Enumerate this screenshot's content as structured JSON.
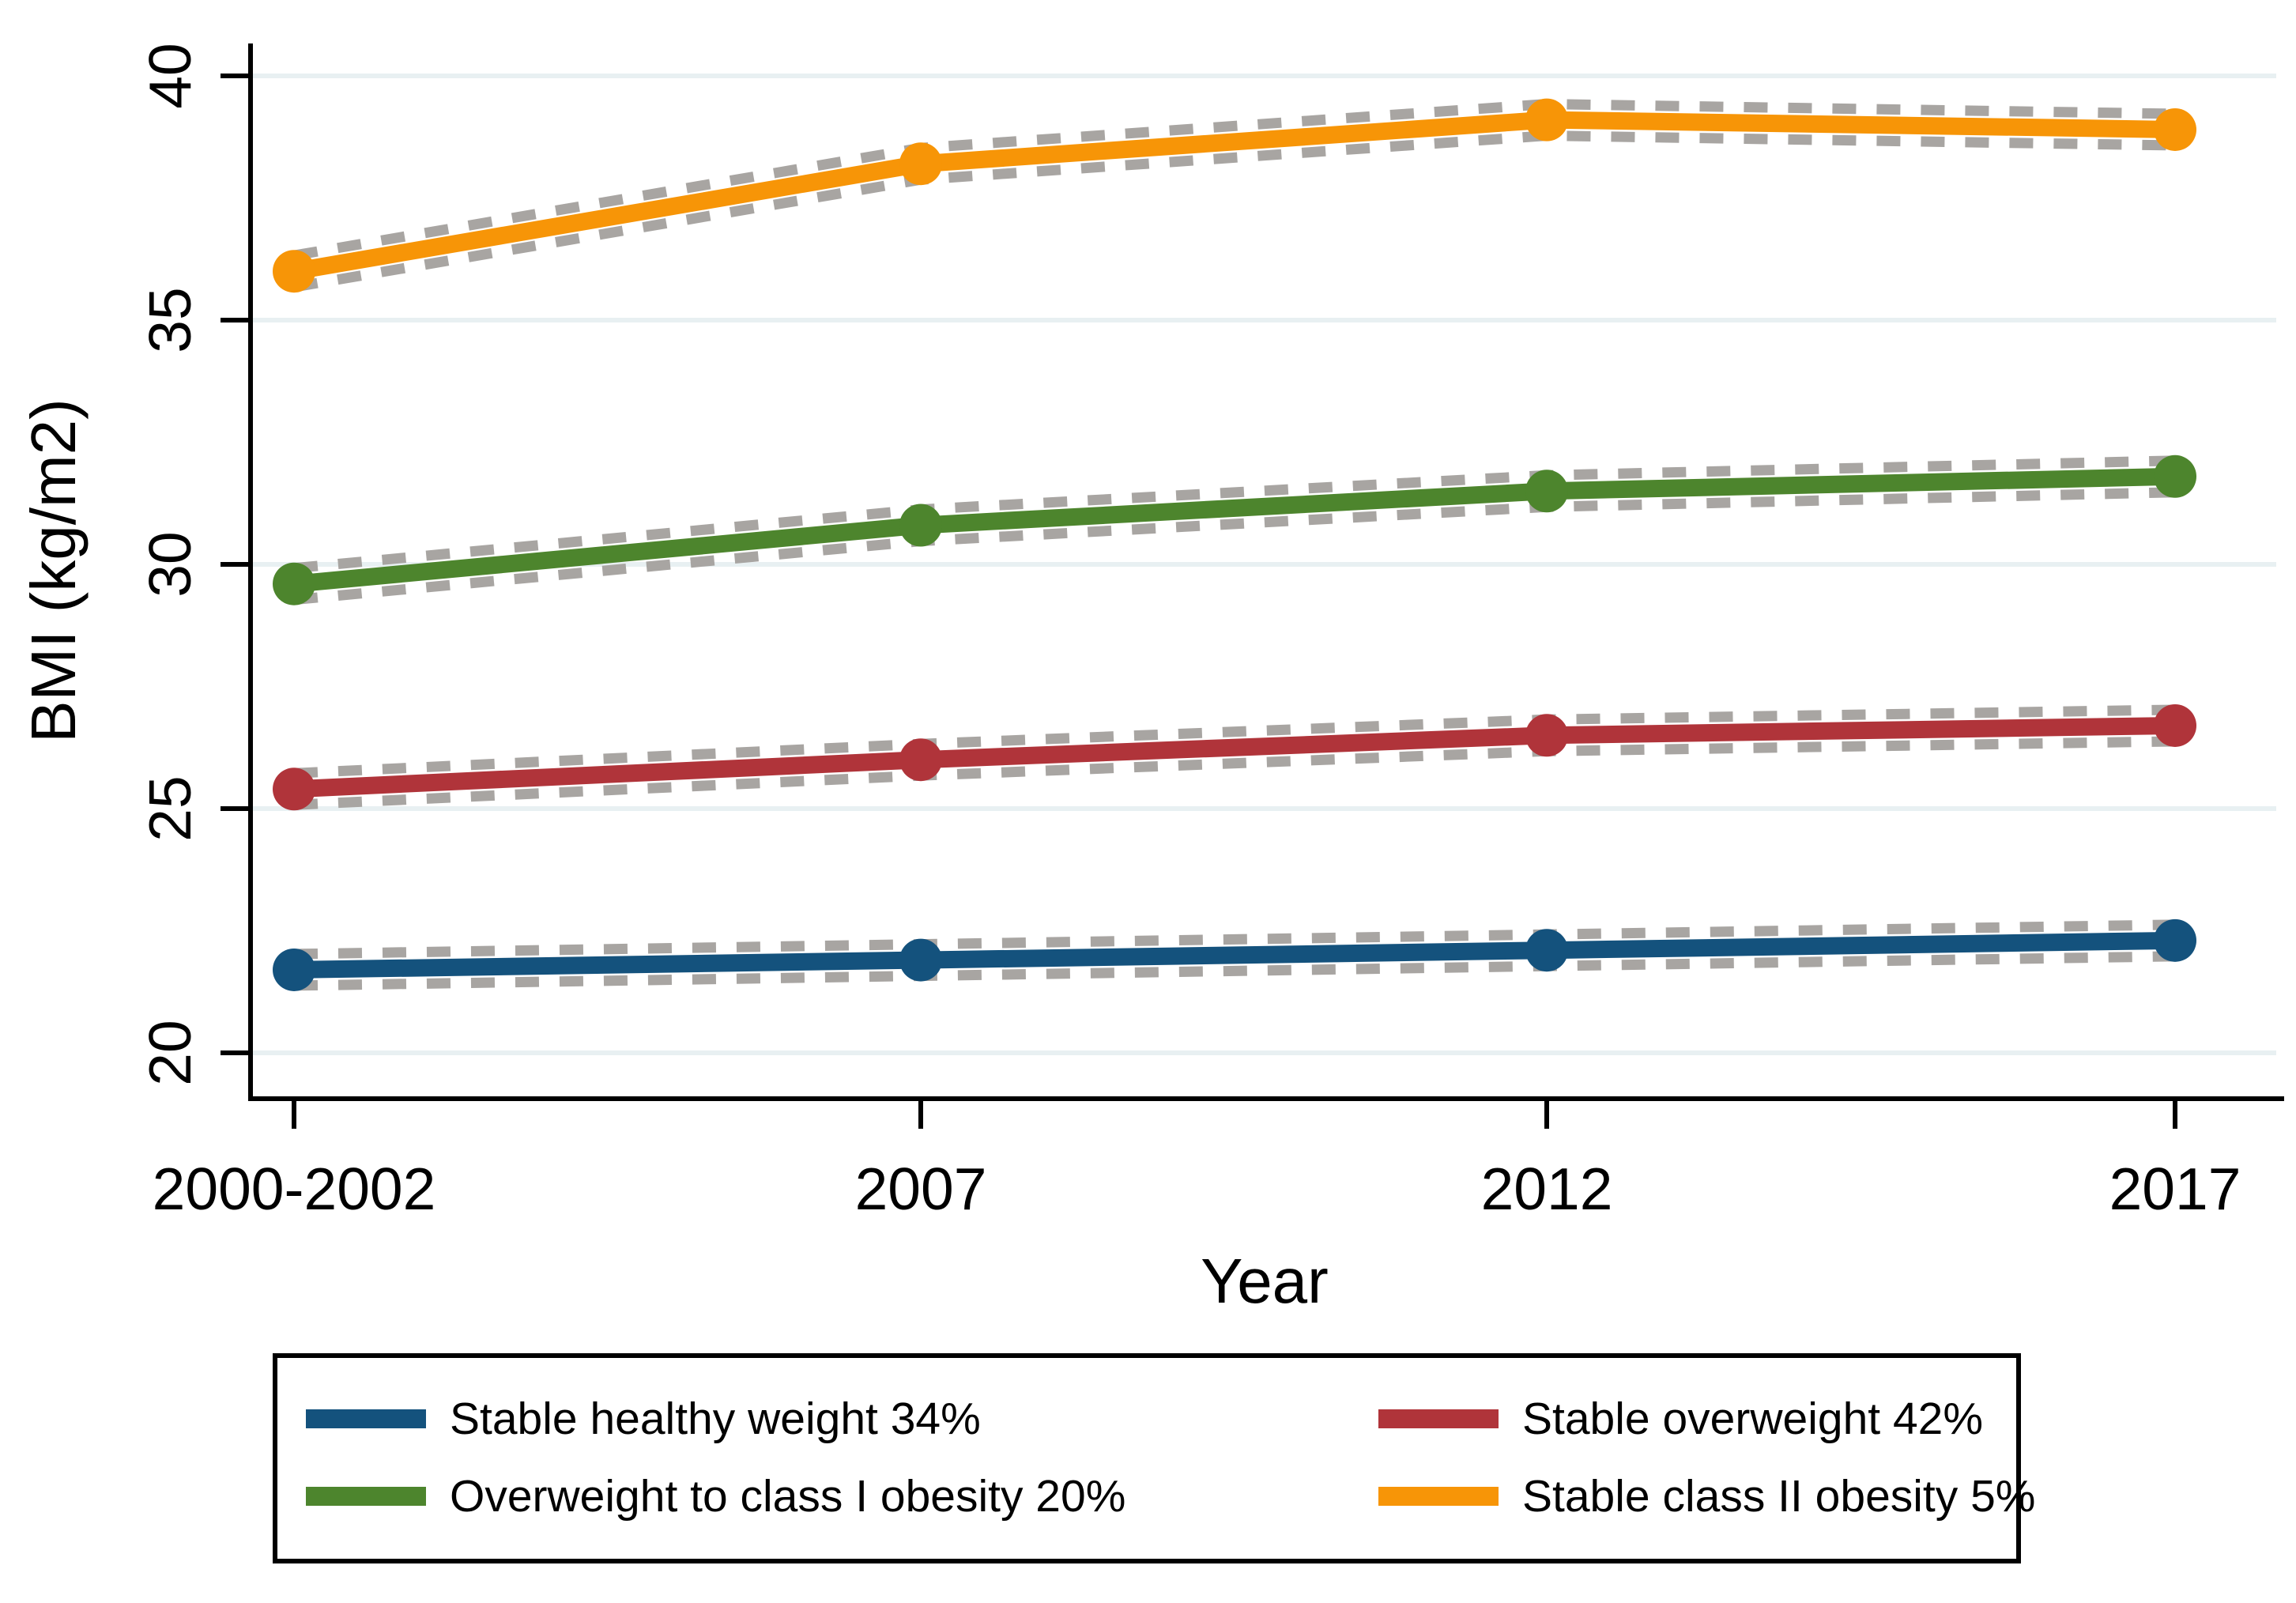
{
  "figure": {
    "x_axis_title": "Year",
    "y_axis_title": "BMI (kg/m2)"
  },
  "chart_data": {
    "type": "line",
    "title": "",
    "xlabel": "Year",
    "ylabel": "BMI (kg/m2)",
    "categories": [
      "2000-2002",
      "2007",
      "2012",
      "2017"
    ],
    "y_tick_labels": [
      "40",
      "35",
      "30",
      "25",
      "20"
    ],
    "ylim": [
      20,
      40
    ],
    "y_tick_step": 5,
    "grid": true,
    "legend_position": "bottom-box",
    "gridline_color": "#E8F0F2",
    "ci_color": "#A8A5A2",
    "axis_color": "#000000",
    "series": [
      {
        "name": "Stable healthy weight 34%",
        "color": "#14527D",
        "values": [
          21.7,
          21.9,
          22.1,
          22.3
        ],
        "ci": true
      },
      {
        "name": "Stable overweight 42%",
        "color": "#B0343A",
        "values": [
          25.4,
          26.0,
          26.5,
          26.7
        ],
        "ci": true
      },
      {
        "name": "Overweight to class I obesity 20%",
        "color": "#4D852D",
        "values": [
          29.6,
          30.8,
          31.5,
          31.8
        ],
        "ci": true
      },
      {
        "name": "Stable class II obesity 5%",
        "color": "#F79507",
        "values": [
          36.0,
          38.2,
          39.1,
          38.9
        ],
        "ci": true
      }
    ]
  },
  "legend": {
    "items": [
      {
        "label": "Stable healthy weight 34%",
        "color": "#14527D"
      },
      {
        "label": "Stable overweight 42%",
        "color": "#B0343A"
      },
      {
        "label": "Overweight to class I obesity 20%",
        "color": "#4D852D"
      },
      {
        "label": "Stable class II obesity 5%",
        "color": "#F79507"
      }
    ]
  }
}
